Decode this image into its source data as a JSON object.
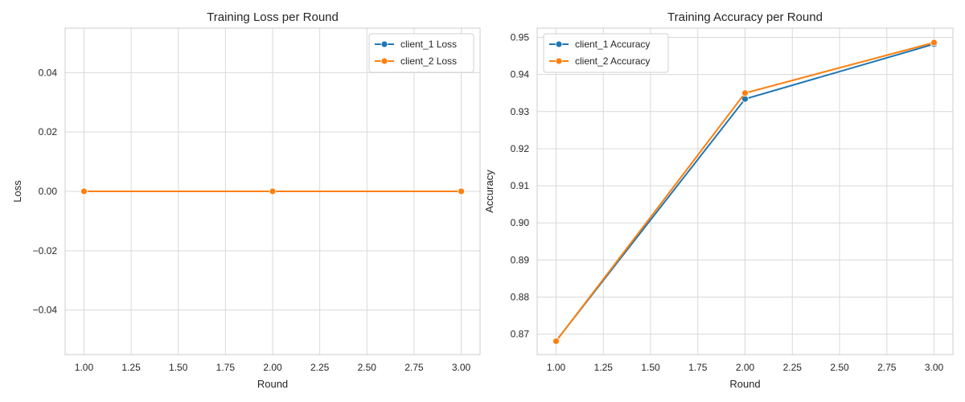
{
  "colors": {
    "series1": "#1f77b4",
    "series2": "#ff7f0e"
  },
  "chart_data": [
    {
      "type": "line",
      "title": "Training Loss per Round",
      "xlabel": "Round",
      "ylabel": "Loss",
      "xlim": [
        0.9,
        3.1
      ],
      "ylim": [
        -0.055,
        0.055
      ],
      "xticks": [
        1.0,
        1.25,
        1.5,
        1.75,
        2.0,
        2.25,
        2.5,
        2.75,
        3.0
      ],
      "xtick_labels": [
        "1.00",
        "1.25",
        "1.50",
        "1.75",
        "2.00",
        "2.25",
        "2.50",
        "2.75",
        "3.00"
      ],
      "yticks": [
        -0.04,
        -0.02,
        0.0,
        0.02,
        0.04
      ],
      "ytick_labels": [
        "−0.04",
        "−0.02",
        "0.00",
        "0.02",
        "0.04"
      ],
      "grid": true,
      "legend_position": "top-right",
      "x": [
        1,
        2,
        3
      ],
      "series": [
        {
          "name": "client_1 Loss",
          "values": [
            0,
            0,
            0
          ]
        },
        {
          "name": "client_2 Loss",
          "values": [
            0,
            0,
            0
          ]
        }
      ]
    },
    {
      "type": "line",
      "title": "Training Accuracy per Round",
      "xlabel": "Round",
      "ylabel": "Accuracy",
      "xlim": [
        0.9,
        3.1
      ],
      "ylim": [
        0.8645,
        0.9525
      ],
      "xticks": [
        1.0,
        1.25,
        1.5,
        1.75,
        2.0,
        2.25,
        2.5,
        2.75,
        3.0
      ],
      "xtick_labels": [
        "1.00",
        "1.25",
        "1.50",
        "1.75",
        "2.00",
        "2.25",
        "2.50",
        "2.75",
        "3.00"
      ],
      "yticks": [
        0.87,
        0.88,
        0.89,
        0.9,
        0.91,
        0.92,
        0.93,
        0.94,
        0.95
      ],
      "ytick_labels": [
        "0.87",
        "0.88",
        "0.89",
        "0.90",
        "0.91",
        "0.92",
        "0.93",
        "0.94",
        "0.95"
      ],
      "grid": true,
      "legend_position": "top-left",
      "x": [
        1,
        2,
        3
      ],
      "series": [
        {
          "name": "client_1 Accuracy",
          "values": [
            0.8682,
            0.9334,
            0.9482
          ]
        },
        {
          "name": "client_2 Accuracy",
          "values": [
            0.8681,
            0.935,
            0.9486
          ]
        }
      ]
    }
  ]
}
